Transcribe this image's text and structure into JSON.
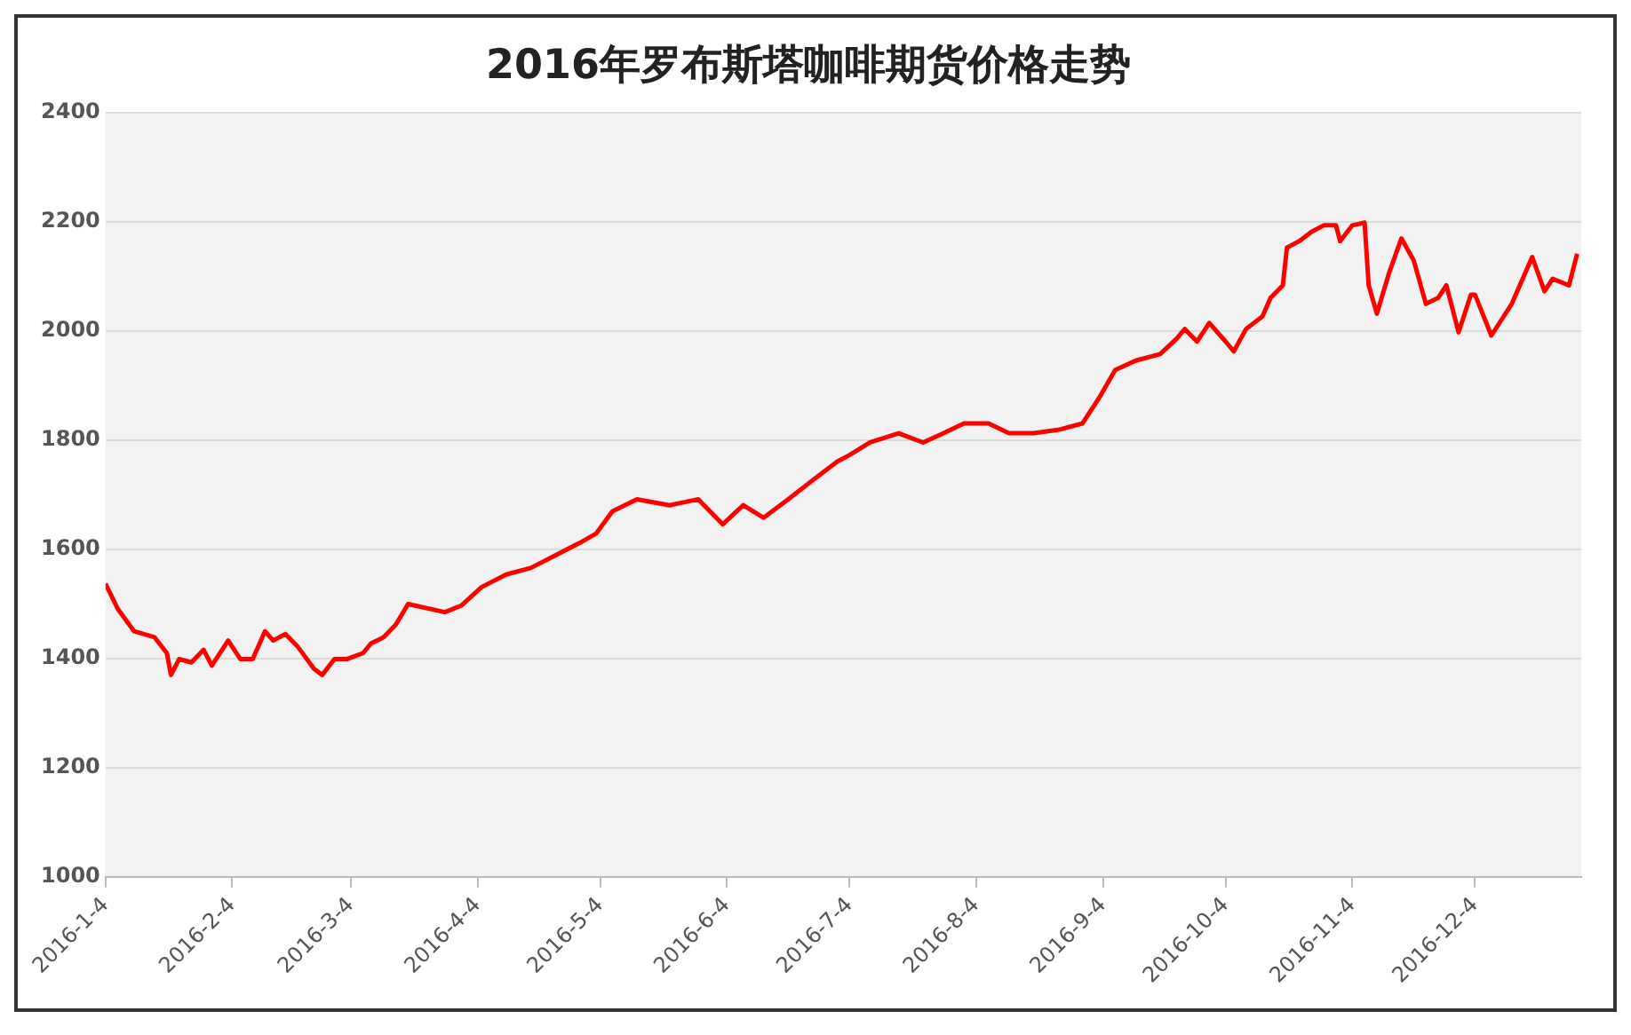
{
  "chart_data": {
    "type": "line",
    "title": "2016年罗布斯塔咖啡期货价格走势",
    "x": [
      "2016-01-04",
      "2016-01-07",
      "2016-01-11",
      "2016-01-16",
      "2016-01-19",
      "2016-01-20",
      "2016-01-22",
      "2016-01-25",
      "2016-01-28",
      "2016-01-30",
      "2016-02-03",
      "2016-02-06",
      "2016-02-09",
      "2016-02-12",
      "2016-02-14",
      "2016-02-17",
      "2016-02-20",
      "2016-02-24",
      "2016-02-26",
      "2016-02-29",
      "2016-03-03",
      "2016-03-07",
      "2016-03-09",
      "2016-03-12",
      "2016-03-15",
      "2016-03-18",
      "2016-03-27",
      "2016-03-31",
      "2016-04-05",
      "2016-04-11",
      "2016-04-17",
      "2016-04-23",
      "2016-04-29",
      "2016-05-03",
      "2016-05-07",
      "2016-05-13",
      "2016-05-21",
      "2016-05-28",
      "2016-06-03",
      "2016-06-08",
      "2016-06-13",
      "2016-06-19",
      "2016-06-25",
      "2016-07-01",
      "2016-07-04",
      "2016-07-09",
      "2016-07-16",
      "2016-07-22",
      "2016-07-27",
      "2016-08-01",
      "2016-08-07",
      "2016-08-12",
      "2016-08-18",
      "2016-08-24",
      "2016-08-30",
      "2016-09-03",
      "2016-09-07",
      "2016-09-12",
      "2016-09-18",
      "2016-09-22",
      "2016-09-24",
      "2016-09-27",
      "2016-09-30",
      "2016-10-04",
      "2016-10-06",
      "2016-10-09",
      "2016-10-13",
      "2016-10-15",
      "2016-10-18",
      "2016-10-19",
      "2016-10-22",
      "2016-10-25",
      "2016-10-28",
      "2016-10-31",
      "2016-11-01",
      "2016-11-04",
      "2016-11-07",
      "2016-11-08",
      "2016-11-10",
      "2016-11-13",
      "2016-11-16",
      "2016-11-19",
      "2016-11-22",
      "2016-11-25",
      "2016-11-27",
      "2016-11-30",
      "2016-12-03",
      "2016-12-04",
      "2016-12-08",
      "2016-12-13",
      "2016-12-18",
      "2016-12-21",
      "2016-12-23",
      "2016-12-27",
      "2016-12-29"
    ],
    "series": [
      {
        "color": "#ff0000",
        "values": [
          1537,
          1491,
          1450,
          1439,
          1410,
          1370,
          1399,
          1393,
          1416,
          1387,
          1433,
          1399,
          1399,
          1450,
          1433,
          1445,
          1422,
          1381,
          1370,
          1399,
          1399,
          1410,
          1428,
          1439,
          1462,
          1500,
          1485,
          1497,
          1531,
          1554,
          1566,
          1589,
          1612,
          1629,
          1670,
          1692,
          1681,
          1692,
          1646,
          1681,
          1658,
          1692,
          1727,
          1761,
          1773,
          1796,
          1813,
          1796,
          1813,
          1831,
          1831,
          1813,
          1813,
          1819,
          1831,
          1877,
          1929,
          1946,
          1958,
          1986,
          2004,
          1981,
          2015,
          1981,
          1963,
          2004,
          2027,
          2061,
          2084,
          2153,
          2165,
          2182,
          2194,
          2194,
          2165,
          2194,
          2199,
          2084,
          2032,
          2107,
          2170,
          2130,
          2050,
          2061,
          2084,
          1998,
          2067,
          2067,
          1992,
          2050,
          2136,
          2073,
          2096,
          2084,
          2142
        ]
      }
    ],
    "xlim": [
      "2016-01-04",
      "2016-12-30"
    ],
    "xticks": [
      {
        "value": "2016-01-04",
        "label": "2016-1-4"
      },
      {
        "value": "2016-02-04",
        "label": "2016-2-4"
      },
      {
        "value": "2016-03-04",
        "label": "2016-3-4"
      },
      {
        "value": "2016-04-04",
        "label": "2016-4-4"
      },
      {
        "value": "2016-05-04",
        "label": "2016-5-4"
      },
      {
        "value": "2016-06-04",
        "label": "2016-6-4"
      },
      {
        "value": "2016-07-04",
        "label": "2016-7-4"
      },
      {
        "value": "2016-08-04",
        "label": "2016-8-4"
      },
      {
        "value": "2016-09-04",
        "label": "2016-9-4"
      },
      {
        "value": "2016-10-04",
        "label": "2016-10-4"
      },
      {
        "value": "2016-11-04",
        "label": "2016-11-4"
      },
      {
        "value": "2016-12-04",
        "label": "2016-12-4"
      }
    ],
    "ylim": [
      1000,
      2400
    ],
    "yticks": [
      1000,
      1200,
      1400,
      1600,
      1800,
      2000,
      2200,
      2400
    ],
    "grid": "y",
    "legend": false,
    "marker": "none",
    "line_style": "solid"
  }
}
